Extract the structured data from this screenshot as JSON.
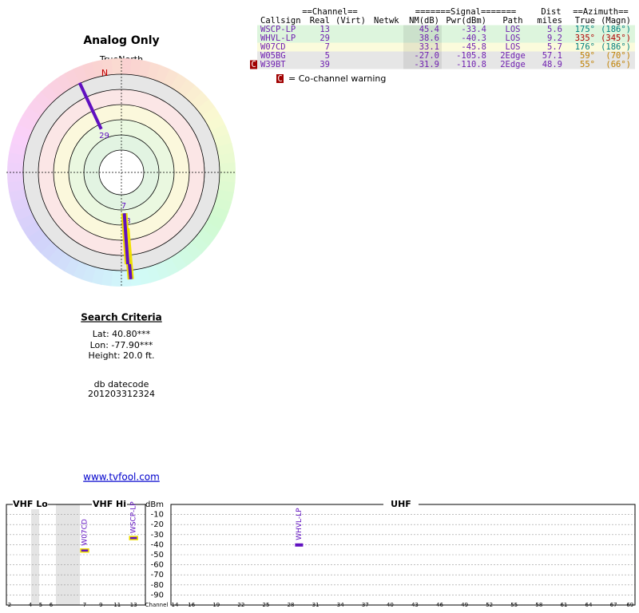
{
  "table": {
    "group_headers": [
      "==Channel==",
      "=======Signal=======",
      "Dist",
      "==Azimuth=="
    ],
    "headers": [
      "Callsign",
      "Real",
      "(Virt)",
      "Netwk",
      "NM(dB)",
      "Pwr(dBm)",
      "Path",
      "miles",
      "True",
      "(Magn)"
    ],
    "rows": [
      {
        "callsign": "WSCP-LP",
        "real": "13",
        "nm": "45.4",
        "pwr": "-33.4",
        "path": "LOS",
        "dist": "5.6",
        "true": "175°",
        "magn": "(186°)",
        "bg": "#ddf5dd",
        "az_color": "#008080"
      },
      {
        "callsign": "WHVL-LP",
        "real": "29",
        "nm": "38.6",
        "pwr": "-40.3",
        "path": "LOS",
        "dist": "9.2",
        "true": "335°",
        "magn": "(345°)",
        "bg": "#ddf5dd",
        "az_color": "#b00000"
      },
      {
        "callsign": "W07CD",
        "real": "7",
        "nm": "33.1",
        "pwr": "-45.8",
        "path": "LOS",
        "dist": "5.7",
        "true": "176°",
        "magn": "(186°)",
        "bg": "#fbfbdc",
        "az_color": "#008080"
      },
      {
        "callsign": "W05BG",
        "real": "5",
        "nm": "-27.0",
        "pwr": "-105.8",
        "path": "2Edge",
        "dist": "57.1",
        "true": "59°",
        "magn": "(70°)",
        "bg": "#e6e6e6",
        "az_color": "#c08000"
      },
      {
        "callsign": "W39BT",
        "real": "39",
        "nm": "-31.9",
        "pwr": "-110.8",
        "path": "2Edge",
        "dist": "48.9",
        "true": "55°",
        "magn": "(66°)",
        "bg": "#e6e6e6",
        "az_color": "#c08000",
        "warning": "C"
      }
    ],
    "legend": {
      "symbol": "C",
      "text": "= Co-channel warning"
    }
  },
  "radar": {
    "title": "Analog Only",
    "north_label": "TrueNorth",
    "n_label": "N",
    "stations": [
      {
        "label": "29",
        "azimuth": 335,
        "nm": 38.6
      },
      {
        "label": "13",
        "azimuth": 175,
        "nm": 45.4,
        "outline": "#f0e000"
      },
      {
        "label": "7",
        "azimuth": 176,
        "nm": 33.1,
        "outline": "#f0e000"
      }
    ]
  },
  "search": {
    "title": "Search Criteria",
    "lat": "Lat: 40.80***",
    "lon": "Lon: -77.90***",
    "height": "Height: 20.0 ft.",
    "db_label": "db datecode",
    "db_code": "201203312324",
    "link": "www.tvfool.com"
  },
  "spectrum": {
    "ylabel": "dBm",
    "xlabel": "Channel",
    "ylim": [
      -100,
      0
    ],
    "yticks": [
      -10,
      -20,
      -30,
      -40,
      -50,
      -60,
      -70,
      -80,
      -90
    ],
    "bands": [
      "VHF Lo",
      "VHF Hi",
      "UHF"
    ],
    "vhf_ticks": [
      2,
      4,
      5,
      6,
      7,
      9,
      11,
      13
    ],
    "uhf_ticks": [
      14,
      16,
      19,
      22,
      25,
      28,
      31,
      34,
      37,
      40,
      43,
      46,
      49,
      52,
      55,
      58,
      61,
      64,
      67,
      69
    ],
    "markers": [
      {
        "label": "W07CD",
        "channel": 7,
        "dbm": -45.8,
        "outline": "#f0e000"
      },
      {
        "label": "WSCP-LP",
        "channel": 13,
        "dbm": -33.4,
        "outline": "#f0e000"
      },
      {
        "label": "WHVL-LP",
        "channel": 29,
        "dbm": -40.3
      }
    ]
  }
}
